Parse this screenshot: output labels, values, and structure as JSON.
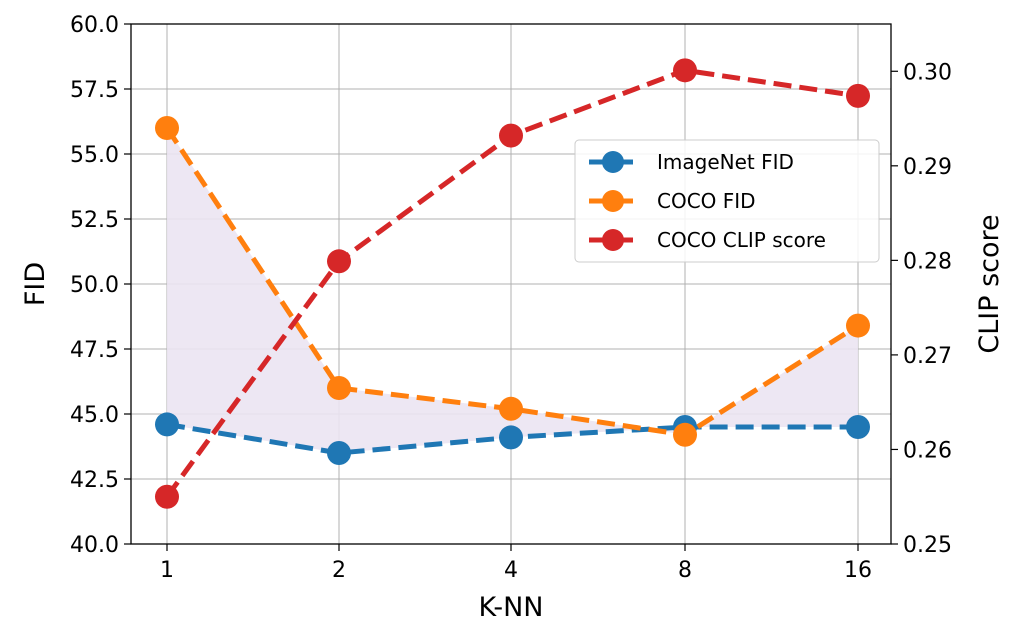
{
  "chart_data": {
    "type": "line",
    "categories": [
      "1",
      "2",
      "4",
      "8",
      "16"
    ],
    "xlabel": "K-NN",
    "ylabel": "FID",
    "y2label": "CLIP score",
    "ylim": [
      40.0,
      60.0
    ],
    "y2lim": [
      0.25,
      0.305
    ],
    "yticks": [
      "40.0",
      "42.5",
      "45.0",
      "47.5",
      "50.0",
      "52.5",
      "55.0",
      "57.5",
      "60.0"
    ],
    "y2ticks": [
      "0.25",
      "0.26",
      "0.27",
      "0.28",
      "0.29",
      "0.30"
    ],
    "grid": true,
    "legend_position": "upper-right",
    "shaded_region": {
      "between": [
        "ImageNet FID",
        "COCO FID"
      ],
      "color": "#ebe4f2"
    },
    "series": [
      {
        "name": "ImageNet FID",
        "axis": "left",
        "color": "#1f77b4",
        "values": [
          44.6,
          43.5,
          44.1,
          44.5,
          44.5
        ]
      },
      {
        "name": "COCO FID",
        "axis": "left",
        "color": "#ff7f0e",
        "values": [
          56.0,
          46.0,
          45.2,
          44.2,
          48.4
        ]
      },
      {
        "name": "COCO CLIP score",
        "axis": "right",
        "color": "#d62728",
        "values": [
          0.255,
          0.2799,
          0.2932,
          0.3001,
          0.2974
        ]
      }
    ]
  }
}
